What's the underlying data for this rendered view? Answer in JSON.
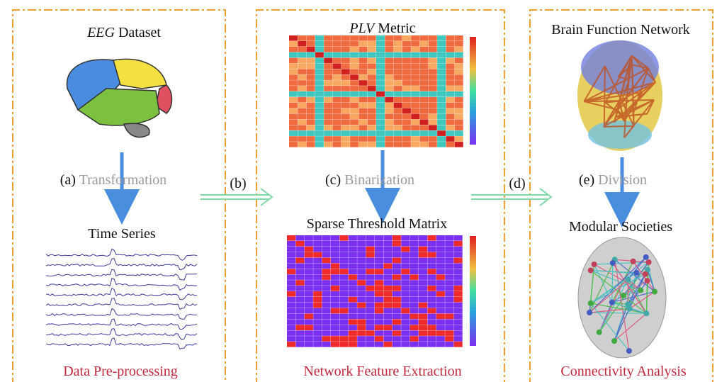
{
  "panels": [
    {
      "title_italic": "EEG",
      "title": "Dataset",
      "step_label": "(a)",
      "step": "Transformation",
      "subtitle": "Time Series",
      "caption": "Data Pre-processing"
    },
    {
      "title_italic": "PLV",
      "title": "Metric",
      "step_label": "(c)",
      "step": "Binarization",
      "subtitle": "Sparse Threshold Matrix",
      "caption": "Network Feature Extraction"
    },
    {
      "title": "Brain Function Network",
      "step_label": "(e)",
      "step": "Division",
      "subtitle": "Modular Societies",
      "caption": "Connectivity Analysis"
    }
  ],
  "links": [
    {
      "label": "(b)"
    },
    {
      "label": "(d)"
    }
  ]
}
